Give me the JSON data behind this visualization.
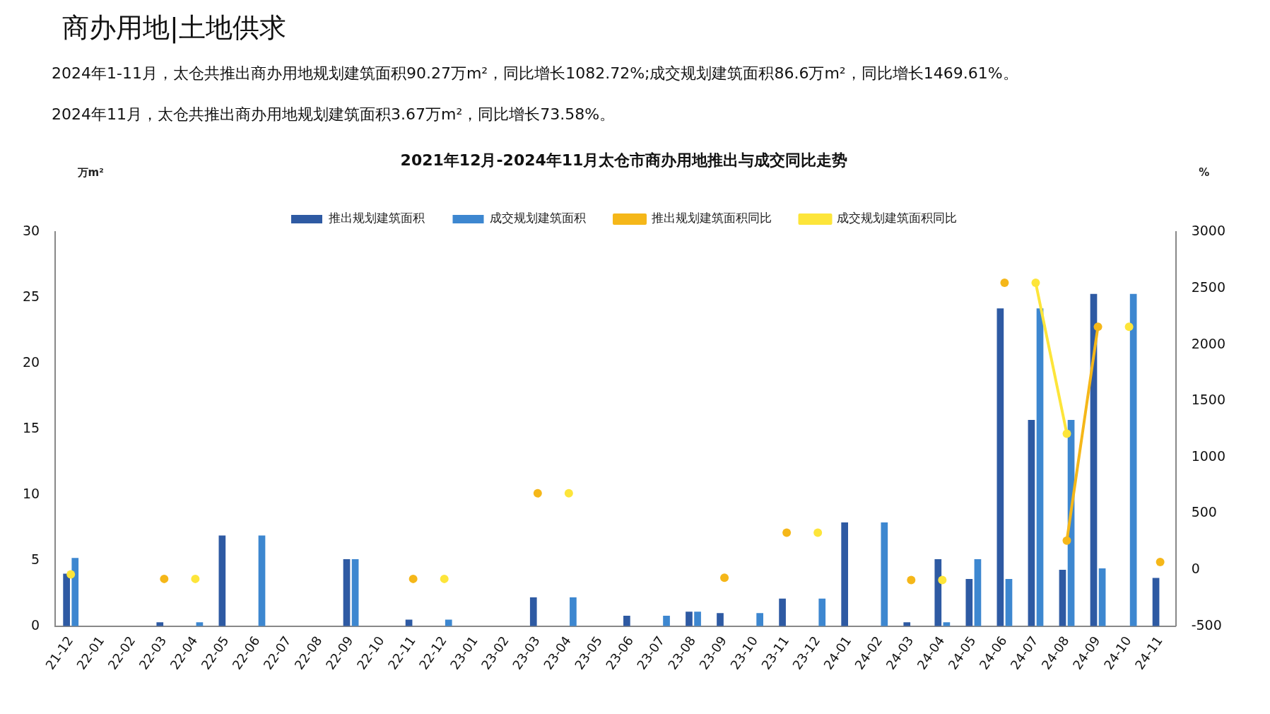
{
  "chart_data": {
    "type": "bar",
    "title": "2021年12月-2024年11月太仓市商办用地推出与成交同比走势",
    "annotations": [
      "商办用地|土地供求",
      "2024年1-11月，太仓共推出商办用地规划建筑面积90.27万m²，同比增长1082.72%;成交规划建筑面积86.6万m²，同比增长1469.61%。",
      "2024年11月，太仓共推出商办用地规划建筑面积3.67万m²，同比增长73.58%。"
    ],
    "ylabel": "万m²",
    "y2label": "%",
    "categories": [
      "21-12",
      "22-01",
      "22-02",
      "22-03",
      "22-04",
      "22-05",
      "22-06",
      "22-07",
      "22-08",
      "22-09",
      "22-10",
      "22-11",
      "22-12",
      "23-01",
      "23-02",
      "23-03",
      "23-04",
      "23-05",
      "23-06",
      "23-07",
      "23-08",
      "23-09",
      "23-10",
      "23-11",
      "23-12",
      "24-01",
      "24-02",
      "24-03",
      "24-04",
      "24-05",
      "24-06",
      "24-07",
      "24-08",
      "24-09",
      "24-10",
      "24-11"
    ],
    "series": [
      {
        "name": "推出规划建筑面积",
        "color": "#2e5aa3",
        "values": [
          4.0,
          null,
          null,
          0.3,
          null,
          6.9,
          null,
          null,
          null,
          5.1,
          null,
          0.5,
          null,
          null,
          null,
          2.2,
          null,
          null,
          0.8,
          null,
          1.1,
          1.0,
          null,
          2.1,
          null,
          7.9,
          null,
          0.3,
          5.1,
          3.6,
          24.2,
          15.7,
          4.3,
          25.3,
          null,
          3.67
        ]
      },
      {
        "name": "成交规划建筑面积",
        "color": "#3d87d0",
        "values": [
          5.2,
          null,
          null,
          null,
          0.3,
          null,
          6.9,
          null,
          null,
          5.1,
          null,
          null,
          0.5,
          null,
          null,
          null,
          2.2,
          null,
          null,
          0.8,
          1.1,
          null,
          1.0,
          null,
          2.1,
          null,
          7.9,
          null,
          0.3,
          5.1,
          3.6,
          24.2,
          15.7,
          4.4,
          25.3,
          null
        ]
      },
      {
        "name": "推出规划建筑面积同比",
        "type": "line",
        "axis": "y2",
        "color": "#f5b719",
        "values": [
          null,
          null,
          null,
          -80,
          null,
          null,
          null,
          null,
          null,
          null,
          null,
          -80,
          null,
          null,
          null,
          680,
          null,
          null,
          null,
          null,
          null,
          -70,
          null,
          330,
          null,
          null,
          null,
          -90,
          null,
          null,
          2550,
          null,
          260,
          2160,
          null,
          70
        ]
      },
      {
        "name": "成交规划建筑面积同比",
        "type": "line",
        "axis": "y2",
        "color": "#fde53a",
        "values": [
          -40,
          null,
          null,
          null,
          -80,
          null,
          null,
          null,
          null,
          null,
          null,
          null,
          -80,
          null,
          null,
          null,
          680,
          null,
          null,
          null,
          null,
          null,
          null,
          null,
          330,
          null,
          null,
          null,
          -90,
          null,
          null,
          2550,
          1210,
          null,
          2160,
          null
        ]
      }
    ],
    "ylim": [
      0,
      30
    ],
    "yticks": [
      0,
      5,
      10,
      15,
      20,
      25,
      30
    ],
    "y2lim": [
      -500,
      3000
    ],
    "y2ticks": [
      -500,
      0,
      500,
      1000,
      1500,
      2000,
      2500,
      3000
    ],
    "grid": false,
    "legend": "top",
    "marker": "circle",
    "line_style": "solid"
  }
}
